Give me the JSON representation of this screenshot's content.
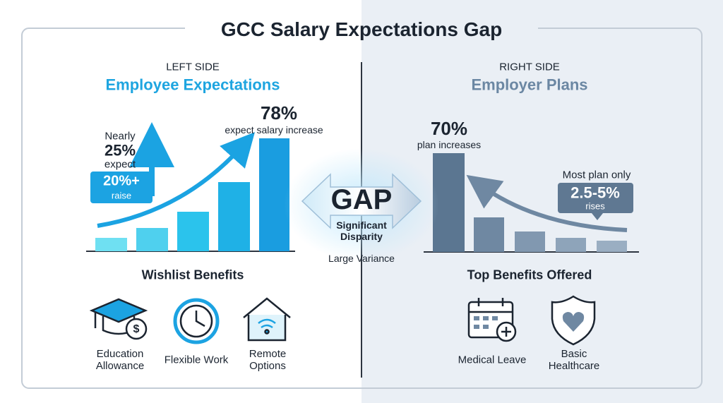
{
  "title": "GCC Salary Expectations Gap",
  "left": {
    "side_label": "LEFT SIDE",
    "heading": "Employee Expectations",
    "headline_value": "78%",
    "headline_text": "expect salary increase",
    "callout": {
      "prefix": "Nearly",
      "value": "25%",
      "text": "expect",
      "badge_value": "20%+",
      "badge_text": "raise"
    },
    "benefits_title": "Wishlist Benefits",
    "benefits": [
      {
        "label": "Education Allowance"
      },
      {
        "label": "Flexible Work"
      },
      {
        "label": "Remote Options"
      }
    ]
  },
  "gap": {
    "label": "GAP",
    "subtitle": "Significant Disparity",
    "note": "Large Variance"
  },
  "right": {
    "side_label": "RIGHT SIDE",
    "heading": "Employer Plans",
    "headline_value": "70%",
    "headline_text": "plan increases",
    "callout": {
      "prefix": "Most plan only",
      "badge_value": "2.5-5%",
      "badge_text": "rises"
    },
    "benefits_title": "Top Benefits Offered",
    "benefits": [
      {
        "label": "Medical Leave"
      },
      {
        "label": "Basic Healthcare"
      }
    ]
  }
}
